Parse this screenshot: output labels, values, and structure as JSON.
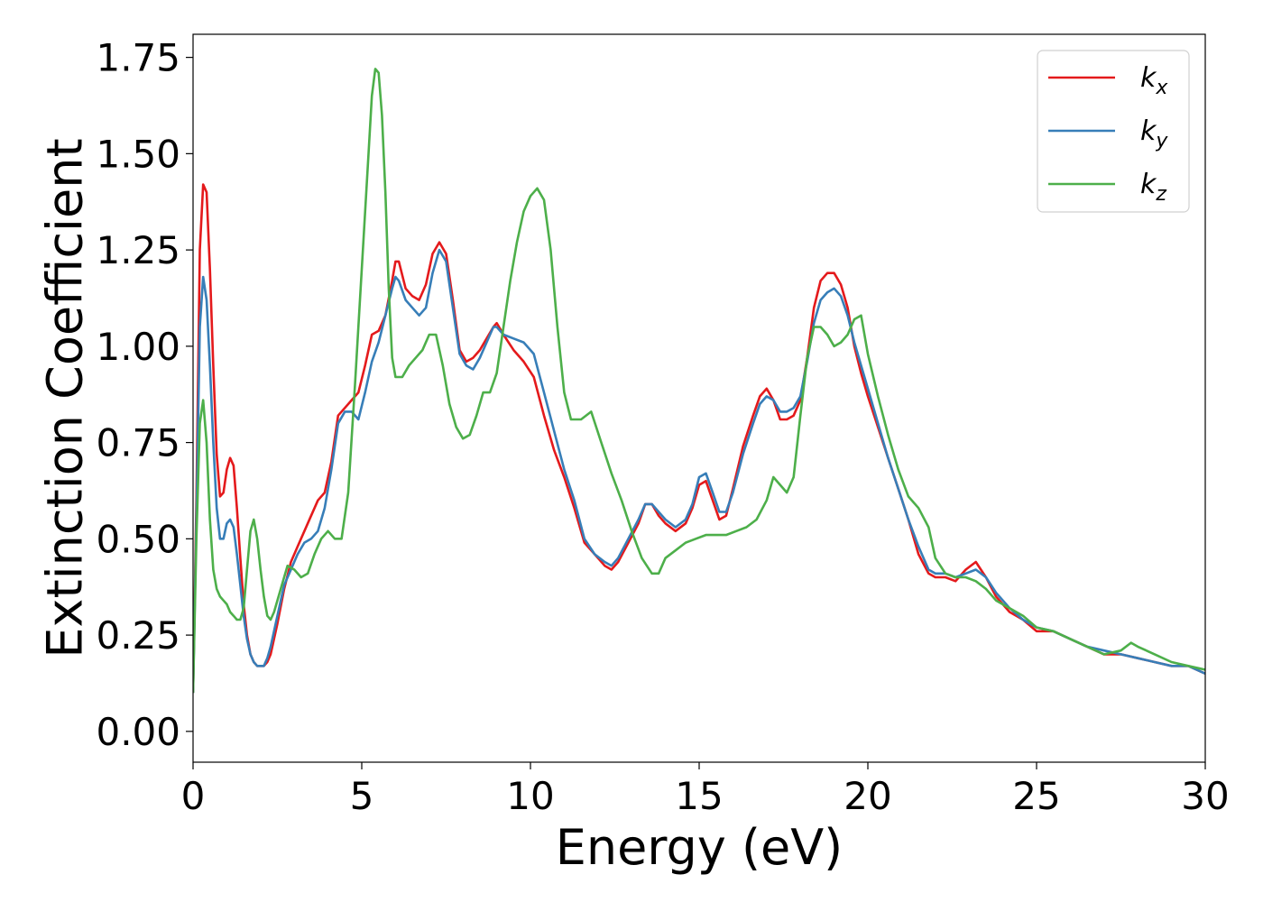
{
  "chart_data": {
    "type": "line",
    "title": "",
    "xlabel": "Energy (eV)",
    "ylabel": "Extinction Coefficient",
    "xlim": [
      0,
      30
    ],
    "ylim": [
      -0.08,
      1.81
    ],
    "xticks": [
      0,
      5,
      10,
      15,
      20,
      25,
      30
    ],
    "xtick_labels": [
      "0",
      "5",
      "10",
      "15",
      "20",
      "25",
      "30"
    ],
    "yticks": [
      0.0,
      0.25,
      0.5,
      0.75,
      1.0,
      1.25,
      1.5,
      1.75
    ],
    "ytick_labels": [
      "0.00",
      "0.25",
      "0.50",
      "0.75",
      "1.00",
      "1.25",
      "1.50",
      "1.75"
    ],
    "grid": false,
    "legend_position": "top-right",
    "series": [
      {
        "name": "k_x",
        "label_base": "k",
        "label_sub": "x",
        "color": "#e41a1c",
        "x": [
          0.0,
          0.1,
          0.2,
          0.3,
          0.4,
          0.5,
          0.6,
          0.7,
          0.8,
          0.9,
          1.0,
          1.1,
          1.2,
          1.3,
          1.4,
          1.5,
          1.6,
          1.7,
          1.8,
          1.9,
          2.0,
          2.1,
          2.2,
          2.3,
          2.5,
          2.7,
          2.9,
          3.1,
          3.3,
          3.5,
          3.7,
          3.9,
          4.1,
          4.3,
          4.5,
          4.7,
          4.9,
          5.1,
          5.3,
          5.5,
          5.7,
          5.9,
          6.0,
          6.1,
          6.3,
          6.5,
          6.7,
          6.9,
          7.1,
          7.3,
          7.5,
          7.7,
          7.9,
          8.1,
          8.3,
          8.5,
          8.7,
          8.9,
          9.0,
          9.2,
          9.5,
          9.8,
          10.1,
          10.4,
          10.7,
          11.0,
          11.3,
          11.6,
          11.9,
          12.2,
          12.4,
          12.6,
          12.9,
          13.2,
          13.4,
          13.6,
          13.8,
          14.0,
          14.3,
          14.6,
          14.8,
          15.0,
          15.2,
          15.4,
          15.6,
          15.8,
          16.0,
          16.3,
          16.6,
          16.8,
          17.0,
          17.2,
          17.4,
          17.6,
          17.8,
          18.0,
          18.2,
          18.4,
          18.6,
          18.8,
          19.0,
          19.2,
          19.4,
          19.6,
          19.8,
          20.0,
          20.3,
          20.6,
          20.9,
          21.2,
          21.5,
          21.8,
          22.0,
          22.3,
          22.6,
          22.9,
          23.2,
          23.5,
          23.8,
          24.2,
          24.6,
          25.0,
          25.5,
          26.0,
          26.5,
          27.0,
          27.5,
          28.0,
          28.5,
          29.0,
          29.5,
          30.0
        ],
        "y": [
          0.1,
          0.6,
          1.25,
          1.42,
          1.4,
          1.2,
          0.95,
          0.72,
          0.61,
          0.62,
          0.68,
          0.71,
          0.69,
          0.58,
          0.45,
          0.33,
          0.25,
          0.2,
          0.18,
          0.17,
          0.17,
          0.17,
          0.18,
          0.2,
          0.28,
          0.37,
          0.44,
          0.48,
          0.52,
          0.56,
          0.6,
          0.62,
          0.7,
          0.82,
          0.84,
          0.86,
          0.88,
          0.95,
          1.03,
          1.04,
          1.08,
          1.17,
          1.22,
          1.22,
          1.15,
          1.13,
          1.12,
          1.16,
          1.24,
          1.27,
          1.24,
          1.12,
          0.99,
          0.96,
          0.97,
          0.99,
          1.02,
          1.05,
          1.06,
          1.03,
          0.99,
          0.96,
          0.92,
          0.82,
          0.73,
          0.66,
          0.58,
          0.49,
          0.46,
          0.43,
          0.42,
          0.44,
          0.49,
          0.54,
          0.59,
          0.59,
          0.56,
          0.54,
          0.52,
          0.54,
          0.58,
          0.64,
          0.65,
          0.6,
          0.55,
          0.56,
          0.63,
          0.74,
          0.82,
          0.87,
          0.89,
          0.86,
          0.81,
          0.81,
          0.82,
          0.86,
          0.97,
          1.1,
          1.17,
          1.19,
          1.19,
          1.16,
          1.1,
          1.0,
          0.93,
          0.87,
          0.79,
          0.71,
          0.63,
          0.55,
          0.46,
          0.41,
          0.4,
          0.4,
          0.39,
          0.42,
          0.44,
          0.4,
          0.35,
          0.31,
          0.29,
          0.26,
          0.26,
          0.24,
          0.22,
          0.2,
          0.2,
          0.19,
          0.18,
          0.17,
          0.17,
          0.15
        ]
      },
      {
        "name": "k_y",
        "label_base": "k",
        "label_sub": "y",
        "color": "#377eb8",
        "x": [
          0.0,
          0.1,
          0.2,
          0.3,
          0.4,
          0.5,
          0.6,
          0.7,
          0.8,
          0.9,
          1.0,
          1.1,
          1.2,
          1.3,
          1.4,
          1.5,
          1.6,
          1.7,
          1.8,
          1.9,
          2.0,
          2.1,
          2.2,
          2.3,
          2.5,
          2.7,
          2.9,
          3.1,
          3.3,
          3.5,
          3.7,
          3.9,
          4.1,
          4.3,
          4.5,
          4.7,
          4.9,
          5.1,
          5.3,
          5.5,
          5.7,
          5.9,
          6.0,
          6.1,
          6.3,
          6.5,
          6.7,
          6.9,
          7.1,
          7.3,
          7.5,
          7.7,
          7.9,
          8.1,
          8.3,
          8.5,
          8.7,
          8.9,
          9.0,
          9.2,
          9.5,
          9.8,
          10.1,
          10.4,
          10.7,
          11.0,
          11.3,
          11.6,
          11.9,
          12.2,
          12.4,
          12.6,
          12.9,
          13.2,
          13.4,
          13.6,
          13.8,
          14.0,
          14.3,
          14.6,
          14.8,
          15.0,
          15.2,
          15.4,
          15.6,
          15.8,
          16.0,
          16.3,
          16.6,
          16.8,
          17.0,
          17.2,
          17.4,
          17.6,
          17.8,
          18.0,
          18.2,
          18.4,
          18.6,
          18.8,
          19.0,
          19.2,
          19.4,
          19.6,
          19.8,
          20.0,
          20.3,
          20.6,
          20.9,
          21.2,
          21.5,
          21.8,
          22.0,
          22.3,
          22.6,
          22.9,
          23.2,
          23.5,
          23.8,
          24.2,
          24.6,
          25.0,
          25.5,
          26.0,
          26.5,
          27.0,
          27.5,
          28.0,
          28.5,
          29.0,
          29.5,
          30.0
        ],
        "y": [
          0.1,
          0.55,
          1.05,
          1.18,
          1.12,
          0.95,
          0.75,
          0.58,
          0.5,
          0.5,
          0.54,
          0.55,
          0.53,
          0.46,
          0.38,
          0.3,
          0.24,
          0.2,
          0.18,
          0.17,
          0.17,
          0.17,
          0.19,
          0.22,
          0.3,
          0.38,
          0.42,
          0.46,
          0.49,
          0.5,
          0.52,
          0.58,
          0.68,
          0.8,
          0.83,
          0.83,
          0.81,
          0.88,
          0.96,
          1.01,
          1.08,
          1.15,
          1.18,
          1.17,
          1.12,
          1.1,
          1.08,
          1.1,
          1.19,
          1.25,
          1.22,
          1.1,
          0.98,
          0.95,
          0.94,
          0.97,
          1.01,
          1.05,
          1.05,
          1.03,
          1.02,
          1.01,
          0.98,
          0.88,
          0.78,
          0.68,
          0.6,
          0.5,
          0.46,
          0.44,
          0.43,
          0.45,
          0.5,
          0.55,
          0.59,
          0.59,
          0.57,
          0.55,
          0.53,
          0.55,
          0.59,
          0.66,
          0.67,
          0.62,
          0.57,
          0.57,
          0.62,
          0.72,
          0.8,
          0.85,
          0.87,
          0.86,
          0.83,
          0.83,
          0.84,
          0.87,
          0.96,
          1.06,
          1.12,
          1.14,
          1.15,
          1.13,
          1.08,
          1.01,
          0.95,
          0.89,
          0.8,
          0.71,
          0.63,
          0.55,
          0.48,
          0.42,
          0.41,
          0.41,
          0.4,
          0.41,
          0.42,
          0.4,
          0.36,
          0.32,
          0.29,
          0.27,
          0.26,
          0.24,
          0.22,
          0.21,
          0.2,
          0.19,
          0.18,
          0.17,
          0.17,
          0.15
        ]
      },
      {
        "name": "k_z",
        "label_base": "k",
        "label_sub": "z",
        "color": "#4daf4a",
        "x": [
          0.0,
          0.1,
          0.2,
          0.3,
          0.4,
          0.5,
          0.6,
          0.7,
          0.8,
          0.9,
          1.0,
          1.1,
          1.2,
          1.3,
          1.4,
          1.5,
          1.6,
          1.7,
          1.8,
          1.9,
          2.0,
          2.1,
          2.2,
          2.3,
          2.4,
          2.6,
          2.8,
          3.0,
          3.2,
          3.4,
          3.6,
          3.8,
          4.0,
          4.2,
          4.4,
          4.6,
          4.8,
          5.0,
          5.2,
          5.3,
          5.4,
          5.5,
          5.6,
          5.7,
          5.8,
          5.9,
          6.0,
          6.2,
          6.4,
          6.6,
          6.8,
          7.0,
          7.2,
          7.4,
          7.6,
          7.8,
          8.0,
          8.2,
          8.4,
          8.6,
          8.8,
          9.0,
          9.2,
          9.4,
          9.6,
          9.8,
          10.0,
          10.2,
          10.4,
          10.6,
          10.8,
          11.0,
          11.2,
          11.5,
          11.8,
          12.1,
          12.4,
          12.7,
          13.0,
          13.3,
          13.6,
          13.8,
          14.0,
          14.3,
          14.6,
          14.9,
          15.2,
          15.5,
          15.8,
          16.1,
          16.4,
          16.7,
          17.0,
          17.2,
          17.4,
          17.6,
          17.8,
          18.0,
          18.2,
          18.4,
          18.6,
          18.8,
          19.0,
          19.2,
          19.4,
          19.6,
          19.8,
          20.0,
          20.3,
          20.6,
          20.9,
          21.2,
          21.5,
          21.8,
          22.0,
          22.3,
          22.6,
          22.9,
          23.2,
          23.5,
          23.8,
          24.2,
          24.6,
          25.0,
          25.5,
          26.0,
          26.5,
          27.0,
          27.5,
          27.8,
          28.0,
          28.5,
          29.0,
          29.5,
          30.0
        ],
        "y": [
          0.1,
          0.5,
          0.8,
          0.86,
          0.75,
          0.55,
          0.42,
          0.37,
          0.35,
          0.34,
          0.33,
          0.31,
          0.3,
          0.29,
          0.29,
          0.32,
          0.42,
          0.52,
          0.55,
          0.5,
          0.42,
          0.35,
          0.3,
          0.29,
          0.31,
          0.37,
          0.43,
          0.42,
          0.4,
          0.41,
          0.46,
          0.5,
          0.52,
          0.5,
          0.5,
          0.62,
          0.9,
          1.2,
          1.5,
          1.65,
          1.72,
          1.71,
          1.6,
          1.4,
          1.15,
          0.97,
          0.92,
          0.92,
          0.95,
          0.97,
          0.99,
          1.03,
          1.03,
          0.95,
          0.85,
          0.79,
          0.76,
          0.77,
          0.82,
          0.88,
          0.88,
          0.93,
          1.05,
          1.17,
          1.27,
          1.35,
          1.39,
          1.41,
          1.38,
          1.25,
          1.05,
          0.88,
          0.81,
          0.81,
          0.83,
          0.75,
          0.67,
          0.6,
          0.52,
          0.45,
          0.41,
          0.41,
          0.45,
          0.47,
          0.49,
          0.5,
          0.51,
          0.51,
          0.51,
          0.52,
          0.53,
          0.55,
          0.6,
          0.66,
          0.64,
          0.62,
          0.66,
          0.82,
          0.97,
          1.05,
          1.05,
          1.03,
          1.0,
          1.01,
          1.03,
          1.07,
          1.08,
          0.98,
          0.87,
          0.77,
          0.68,
          0.61,
          0.58,
          0.53,
          0.45,
          0.41,
          0.4,
          0.4,
          0.39,
          0.37,
          0.34,
          0.32,
          0.3,
          0.27,
          0.26,
          0.24,
          0.22,
          0.2,
          0.21,
          0.23,
          0.22,
          0.2,
          0.18,
          0.17,
          0.16
        ]
      }
    ]
  }
}
